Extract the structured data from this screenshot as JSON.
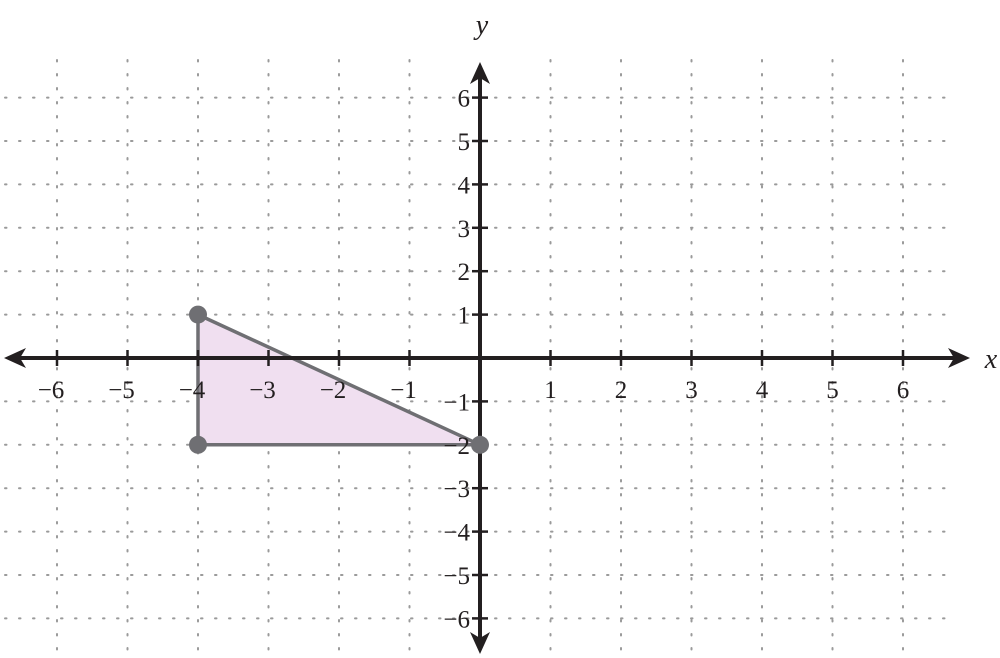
{
  "chart_data": {
    "type": "coordinate-plane",
    "axes": {
      "x_label": "x",
      "y_label": "y",
      "x_range": [
        -6.8,
        6.8
      ],
      "y_range": [
        -6.8,
        6.8
      ],
      "x_ticks": [
        -6,
        -5,
        -4,
        -3,
        -2,
        -1,
        1,
        2,
        3,
        4,
        5,
        6
      ],
      "y_ticks": [
        6,
        5,
        4,
        3,
        2,
        1,
        -1,
        -2,
        -3,
        -4,
        -5,
        -6
      ],
      "x_tick_labels": [
        "−6",
        "−5",
        "−4",
        "−3",
        "−2",
        "−1",
        "1",
        "2",
        "3",
        "4",
        "5",
        "6"
      ],
      "y_tick_labels": [
        "6",
        "5",
        "4",
        "3",
        "2",
        "1",
        "−1",
        "−2",
        "−3",
        "−4",
        "−5",
        "−6"
      ],
      "grid": true,
      "grid_style": "dotted"
    },
    "shapes": [
      {
        "type": "triangle",
        "vertices": [
          [
            -4,
            1
          ],
          [
            -4,
            -2
          ],
          [
            0,
            -2
          ]
        ],
        "fill_color": "#f0dff0",
        "stroke_color": "#6f6f73",
        "point_color": "#6f6f73"
      }
    ]
  }
}
